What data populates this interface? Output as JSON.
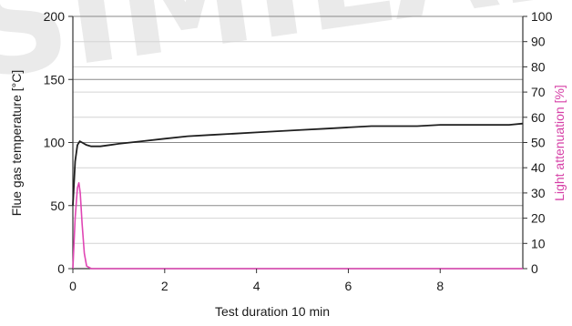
{
  "chart_data": {
    "type": "line",
    "xlabel": "Test duration 10 min",
    "ylabel": "Flue gas temperature [°C]",
    "y2label": "Light attenuation [%]",
    "xlim": [
      0,
      9.8
    ],
    "ylim": [
      0,
      200
    ],
    "y2lim": [
      0,
      100
    ],
    "x_ticks": [
      0,
      2,
      4,
      6,
      8
    ],
    "y_ticks": [
      0,
      50,
      100,
      150,
      200
    ],
    "y2_ticks": [
      0,
      10,
      20,
      30,
      40,
      50,
      60,
      70,
      80,
      90,
      100
    ],
    "grid": true,
    "series": [
      {
        "axis": "left",
        "color": "#1f1f1f",
        "x": [
          0,
          0.05,
          0.1,
          0.15,
          0.2,
          0.3,
          0.4,
          0.6,
          0.8,
          1.0,
          1.5,
          2.0,
          2.5,
          3.0,
          3.5,
          4.0,
          4.5,
          5.0,
          5.5,
          6.0,
          6.5,
          7.0,
          7.5,
          8.0,
          8.5,
          9.0,
          9.5,
          9.8
        ],
        "y": [
          50,
          85,
          98,
          101,
          100,
          98,
          97,
          97,
          98,
          99,
          101,
          103,
          105,
          106,
          107,
          108,
          109,
          110,
          111,
          112,
          113,
          113,
          113,
          114,
          114,
          114,
          114,
          115
        ]
      },
      {
        "axis": "right",
        "color": "#e046b4",
        "x": [
          0,
          0.05,
          0.1,
          0.13,
          0.16,
          0.2,
          0.25,
          0.3,
          0.4,
          0.6,
          1.0,
          2.0,
          4.0,
          6.0,
          8.0,
          9.8
        ],
        "y": [
          0,
          20,
          32,
          34,
          30,
          18,
          6,
          1,
          0,
          0,
          0,
          0,
          0,
          0,
          0,
          0
        ]
      }
    ]
  }
}
